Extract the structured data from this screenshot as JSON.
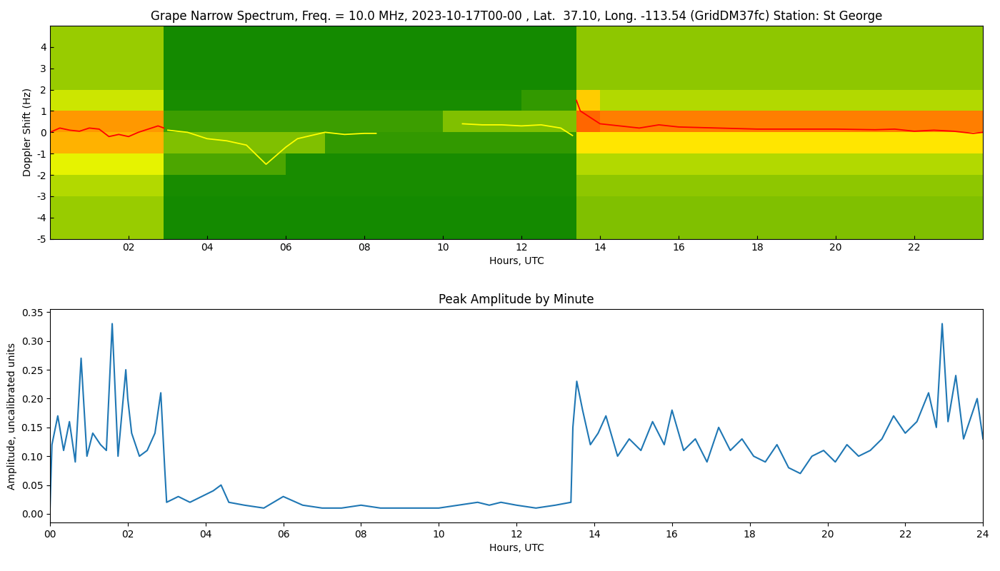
{
  "chart_data": [
    {
      "type": "heatmap",
      "title": "Grape Narrow Spectrum, Freq. = 10.0 MHz, 2023-10-17T00-00 , Lat.  37.10, Long. -113.54 (GridDM37fc) Station: St George",
      "x_label": "Hours, UTC",
      "y_label": "Doppler Shift (Hz)",
      "xlim": [
        0,
        23.75
      ],
      "ylim": [
        -5,
        5
      ],
      "xticks": [
        {
          "value": 2,
          "label": "02"
        },
        {
          "value": 4,
          "label": "04"
        },
        {
          "value": 6,
          "label": "06"
        },
        {
          "value": 8,
          "label": "08"
        },
        {
          "value": 10,
          "label": "10"
        },
        {
          "value": 12,
          "label": "12"
        },
        {
          "value": 14,
          "label": "14"
        },
        {
          "value": 16,
          "label": "16"
        },
        {
          "value": 18,
          "label": "18"
        },
        {
          "value": 20,
          "label": "20"
        },
        {
          "value": 22,
          "label": "22"
        }
      ],
      "yticks": [
        -5,
        -4,
        -3,
        -2,
        -1,
        0,
        1,
        2,
        3,
        4
      ],
      "x_edges": [
        0,
        1,
        2,
        2.9,
        4,
        5,
        6,
        7,
        8,
        9,
        10,
        11,
        12,
        13.4,
        14,
        15,
        16,
        17,
        18,
        19,
        20,
        21,
        22,
        23,
        24
      ],
      "y_edges": [
        -5,
        -4,
        -3,
        -2,
        -1,
        0,
        1,
        2,
        3,
        4,
        5
      ],
      "clim": [
        0,
        1
      ],
      "cells": [
        [
          0.3,
          0.3,
          0.3,
          0.04,
          0.04,
          0.04,
          0.04,
          0.04,
          0.04,
          0.04,
          0.04,
          0.04,
          0.04,
          0.25,
          0.25,
          0.25,
          0.25,
          0.25,
          0.25,
          0.25,
          0.25,
          0.25,
          0.25,
          0.25
        ],
        [
          0.3,
          0.3,
          0.3,
          0.04,
          0.04,
          0.04,
          0.04,
          0.04,
          0.04,
          0.04,
          0.04,
          0.04,
          0.04,
          0.25,
          0.25,
          0.25,
          0.25,
          0.25,
          0.25,
          0.25,
          0.25,
          0.25,
          0.25,
          0.25
        ],
        [
          0.35,
          0.35,
          0.35,
          0.05,
          0.05,
          0.05,
          0.05,
          0.05,
          0.05,
          0.05,
          0.05,
          0.05,
          0.05,
          0.28,
          0.28,
          0.28,
          0.28,
          0.28,
          0.28,
          0.28,
          0.28,
          0.28,
          0.28,
          0.28
        ],
        [
          0.45,
          0.45,
          0.45,
          0.15,
          0.15,
          0.15,
          0.05,
          0.05,
          0.05,
          0.05,
          0.05,
          0.05,
          0.05,
          0.35,
          0.35,
          0.35,
          0.35,
          0.35,
          0.35,
          0.35,
          0.35,
          0.35,
          0.35,
          0.35
        ],
        [
          0.65,
          0.65,
          0.65,
          0.25,
          0.25,
          0.25,
          0.25,
          0.1,
          0.1,
          0.1,
          0.1,
          0.1,
          0.1,
          0.55,
          0.55,
          0.55,
          0.55,
          0.55,
          0.55,
          0.55,
          0.55,
          0.55,
          0.55,
          0.55
        ],
        [
          0.7,
          0.7,
          0.7,
          0.12,
          0.12,
          0.12,
          0.12,
          0.12,
          0.12,
          0.12,
          0.25,
          0.25,
          0.25,
          0.8,
          0.75,
          0.75,
          0.75,
          0.75,
          0.75,
          0.75,
          0.75,
          0.75,
          0.75,
          0.75
        ],
        [
          0.4,
          0.4,
          0.4,
          0.05,
          0.05,
          0.05,
          0.05,
          0.05,
          0.05,
          0.05,
          0.05,
          0.05,
          0.1,
          0.6,
          0.35,
          0.35,
          0.35,
          0.35,
          0.35,
          0.35,
          0.35,
          0.35,
          0.35,
          0.35
        ],
        [
          0.3,
          0.3,
          0.3,
          0.04,
          0.04,
          0.04,
          0.04,
          0.04,
          0.04,
          0.04,
          0.04,
          0.04,
          0.04,
          0.28,
          0.28,
          0.28,
          0.28,
          0.28,
          0.28,
          0.28,
          0.28,
          0.28,
          0.28,
          0.28
        ],
        [
          0.3,
          0.3,
          0.3,
          0.04,
          0.04,
          0.04,
          0.04,
          0.04,
          0.04,
          0.04,
          0.04,
          0.04,
          0.04,
          0.28,
          0.28,
          0.28,
          0.28,
          0.28,
          0.28,
          0.28,
          0.28,
          0.28,
          0.28,
          0.28
        ],
        [
          0.3,
          0.3,
          0.3,
          0.04,
          0.04,
          0.04,
          0.04,
          0.04,
          0.04,
          0.04,
          0.04,
          0.04,
          0.04,
          0.28,
          0.28,
          0.28,
          0.28,
          0.28,
          0.28,
          0.28,
          0.28,
          0.28,
          0.28,
          0.28
        ]
      ],
      "series": [
        {
          "color": "red",
          "x": [
            0,
            0.25,
            0.5,
            0.75,
            1.0,
            1.25,
            1.5,
            1.75,
            2.0,
            2.25,
            2.5,
            2.75,
            2.9,
            8,
            13.4,
            13.5,
            13.75,
            14,
            14.5,
            15,
            15.5,
            16,
            17,
            18,
            19,
            20,
            21,
            21.5,
            22,
            22.5,
            23,
            23.5,
            23.75
          ],
          "values": [
            0.0,
            0.2,
            0.1,
            0.05,
            0.2,
            0.15,
            -0.2,
            -0.1,
            -0.2,
            0.0,
            0.15,
            0.3,
            0.2,
            null,
            1.5,
            1.0,
            0.7,
            0.4,
            0.3,
            0.2,
            0.35,
            0.25,
            0.2,
            0.15,
            0.15,
            0.15,
            0.12,
            0.15,
            0.05,
            0.1,
            0.05,
            -0.05,
            0.0
          ]
        },
        {
          "color": "yellow",
          "x": [
            3.0,
            3.5,
            4.0,
            4.5,
            5.0,
            5.5,
            6.0,
            6.3,
            7.0,
            7.5,
            8.0,
            8.3,
            9.0,
            10.5,
            11.0,
            11.5,
            12.0,
            12.5,
            13.0,
            13.3
          ],
          "values": [
            0.1,
            0.0,
            -0.3,
            -0.4,
            -0.6,
            -1.5,
            -0.7,
            -0.3,
            0.0,
            -0.1,
            -0.05,
            -0.05,
            null,
            0.4,
            0.35,
            0.35,
            0.3,
            0.35,
            0.2,
            -0.15
          ]
        }
      ]
    },
    {
      "type": "line",
      "title": "Peak Amplitude by Minute",
      "x_label": "Hours, UTC",
      "y_label": "Amplitude, uncalibrated units",
      "xlim": [
        0,
        24
      ],
      "ylim": [
        -0.015,
        0.355
      ],
      "xticks": [
        {
          "value": 0,
          "label": "00"
        },
        {
          "value": 2,
          "label": "02"
        },
        {
          "value": 4,
          "label": "04"
        },
        {
          "value": 6,
          "label": "06"
        },
        {
          "value": 8,
          "label": "08"
        },
        {
          "value": 10,
          "label": "10"
        },
        {
          "value": 12,
          "label": "12"
        },
        {
          "value": 14,
          "label": "14"
        },
        {
          "value": 16,
          "label": "16"
        },
        {
          "value": 18,
          "label": "18"
        },
        {
          "value": 20,
          "label": "20"
        },
        {
          "value": 22,
          "label": "22"
        },
        {
          "value": 24,
          "label": "24"
        }
      ],
      "yticks": [
        {
          "value": 0.0,
          "label": "0.00"
        },
        {
          "value": 0.05,
          "label": "0.05"
        },
        {
          "value": 0.1,
          "label": "0.10"
        },
        {
          "value": 0.15,
          "label": "0.15"
        },
        {
          "value": 0.2,
          "label": "0.20"
        },
        {
          "value": 0.25,
          "label": "0.25"
        },
        {
          "value": 0.3,
          "label": "0.30"
        },
        {
          "value": 0.35,
          "label": "0.35"
        }
      ],
      "series": [
        {
          "color": "#1f77b4",
          "x": [
            0,
            0.05,
            0.2,
            0.35,
            0.5,
            0.65,
            0.8,
            0.95,
            1.1,
            1.3,
            1.45,
            1.6,
            1.75,
            1.95,
            2.0,
            2.1,
            2.3,
            2.5,
            2.7,
            2.85,
            2.95,
            3.0,
            3.3,
            3.6,
            3.9,
            4.2,
            4.4,
            4.6,
            5.0,
            5.5,
            6.0,
            6.5,
            7.0,
            7.5,
            8.0,
            8.5,
            9.0,
            9.5,
            10.0,
            10.5,
            11.0,
            11.3,
            11.6,
            12.0,
            12.5,
            13.0,
            13.4,
            13.45,
            13.55,
            13.7,
            13.9,
            14.1,
            14.3,
            14.6,
            14.9,
            15.2,
            15.5,
            15.8,
            16.0,
            16.3,
            16.6,
            16.9,
            17.2,
            17.5,
            17.8,
            18.1,
            18.4,
            18.7,
            19.0,
            19.3,
            19.6,
            19.9,
            20.2,
            20.5,
            20.8,
            21.1,
            21.4,
            21.7,
            22.0,
            22.3,
            22.6,
            22.8,
            22.95,
            23.1,
            23.3,
            23.5,
            23.7,
            23.85,
            24.0
          ],
          "values": [
            0.01,
            0.12,
            0.17,
            0.11,
            0.16,
            0.09,
            0.27,
            0.1,
            0.14,
            0.12,
            0.11,
            0.33,
            0.1,
            0.25,
            0.2,
            0.14,
            0.1,
            0.11,
            0.14,
            0.21,
            0.08,
            0.02,
            0.03,
            0.02,
            0.03,
            0.04,
            0.05,
            0.02,
            0.015,
            0.01,
            0.03,
            0.015,
            0.01,
            0.01,
            0.015,
            0.01,
            0.01,
            0.01,
            0.01,
            0.015,
            0.02,
            0.015,
            0.02,
            0.015,
            0.01,
            0.015,
            0.02,
            0.15,
            0.23,
            0.18,
            0.12,
            0.14,
            0.17,
            0.1,
            0.13,
            0.11,
            0.16,
            0.12,
            0.18,
            0.11,
            0.13,
            0.09,
            0.15,
            0.11,
            0.13,
            0.1,
            0.09,
            0.12,
            0.08,
            0.07,
            0.1,
            0.11,
            0.09,
            0.12,
            0.1,
            0.11,
            0.13,
            0.17,
            0.14,
            0.16,
            0.21,
            0.15,
            0.33,
            0.16,
            0.24,
            0.13,
            0.17,
            0.2,
            0.13
          ]
        }
      ]
    }
  ]
}
